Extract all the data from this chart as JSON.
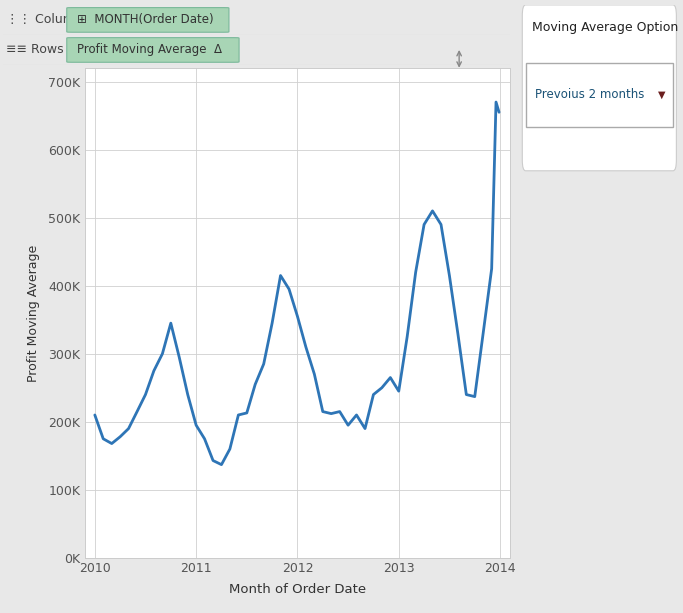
{
  "xlabel": "Month of Order Date",
  "ylabel": "Profit Moving Average",
  "bg_color": "#ffffff",
  "outer_bg_color": "#e8e8e8",
  "line_color": "#2e75b6",
  "line_width": 2.0,
  "ylim": [
    0,
    720000
  ],
  "yticks": [
    0,
    100000,
    200000,
    300000,
    400000,
    500000,
    600000,
    700000
  ],
  "ytick_labels": [
    "0K",
    "100K",
    "200K",
    "300K",
    "400K",
    "500K",
    "600K",
    "700K"
  ],
  "grid_color": "#d0d0d0",
  "grid_alpha": 1.0,
  "header_bg": "#f2f2f2",
  "header_text_color": "#444444",
  "pill_bg": "#a8d5b5",
  "pill_border": "#7ab89a",
  "sidebar_bg": "#d4d4d4",
  "x_data": [
    2010.0,
    2010.083,
    2010.167,
    2010.25,
    2010.333,
    2010.417,
    2010.5,
    2010.583,
    2010.667,
    2010.75,
    2010.833,
    2010.917,
    2011.0,
    2011.083,
    2011.167,
    2011.25,
    2011.333,
    2011.417,
    2011.5,
    2011.583,
    2011.667,
    2011.75,
    2011.833,
    2011.917,
    2012.0,
    2012.083,
    2012.167,
    2012.25,
    2012.333,
    2012.417,
    2012.5,
    2012.583,
    2012.667,
    2012.75,
    2012.833,
    2012.917,
    2013.0,
    2013.083,
    2013.167,
    2013.25,
    2013.333,
    2013.417,
    2013.5,
    2013.583,
    2013.667,
    2013.75,
    2013.833,
    2013.917,
    2013.96,
    2013.99
  ],
  "y_data": [
    210000,
    175000,
    168000,
    178000,
    190000,
    215000,
    240000,
    275000,
    300000,
    345000,
    295000,
    240000,
    195000,
    175000,
    143000,
    137000,
    160000,
    210000,
    213000,
    255000,
    285000,
    345000,
    415000,
    395000,
    355000,
    310000,
    270000,
    215000,
    212000,
    215000,
    195000,
    210000,
    190000,
    240000,
    250000,
    265000,
    245000,
    325000,
    420000,
    490000,
    510000,
    490000,
    415000,
    330000,
    240000,
    237000,
    330000,
    425000,
    670000,
    655000
  ],
  "xlim": [
    2009.9,
    2014.1
  ],
  "xtick_positions": [
    2010,
    2011,
    2012,
    2013,
    2014
  ],
  "xtick_labels": [
    "2010",
    "2011",
    "2012",
    "2013",
    "2014"
  ],
  "columns_label": "MONTH(Order Date)",
  "rows_label": "Profit Moving Average  Δ",
  "sidebar_title": "Moving Average Option",
  "sidebar_dropdown": "Prevoius 2 months"
}
